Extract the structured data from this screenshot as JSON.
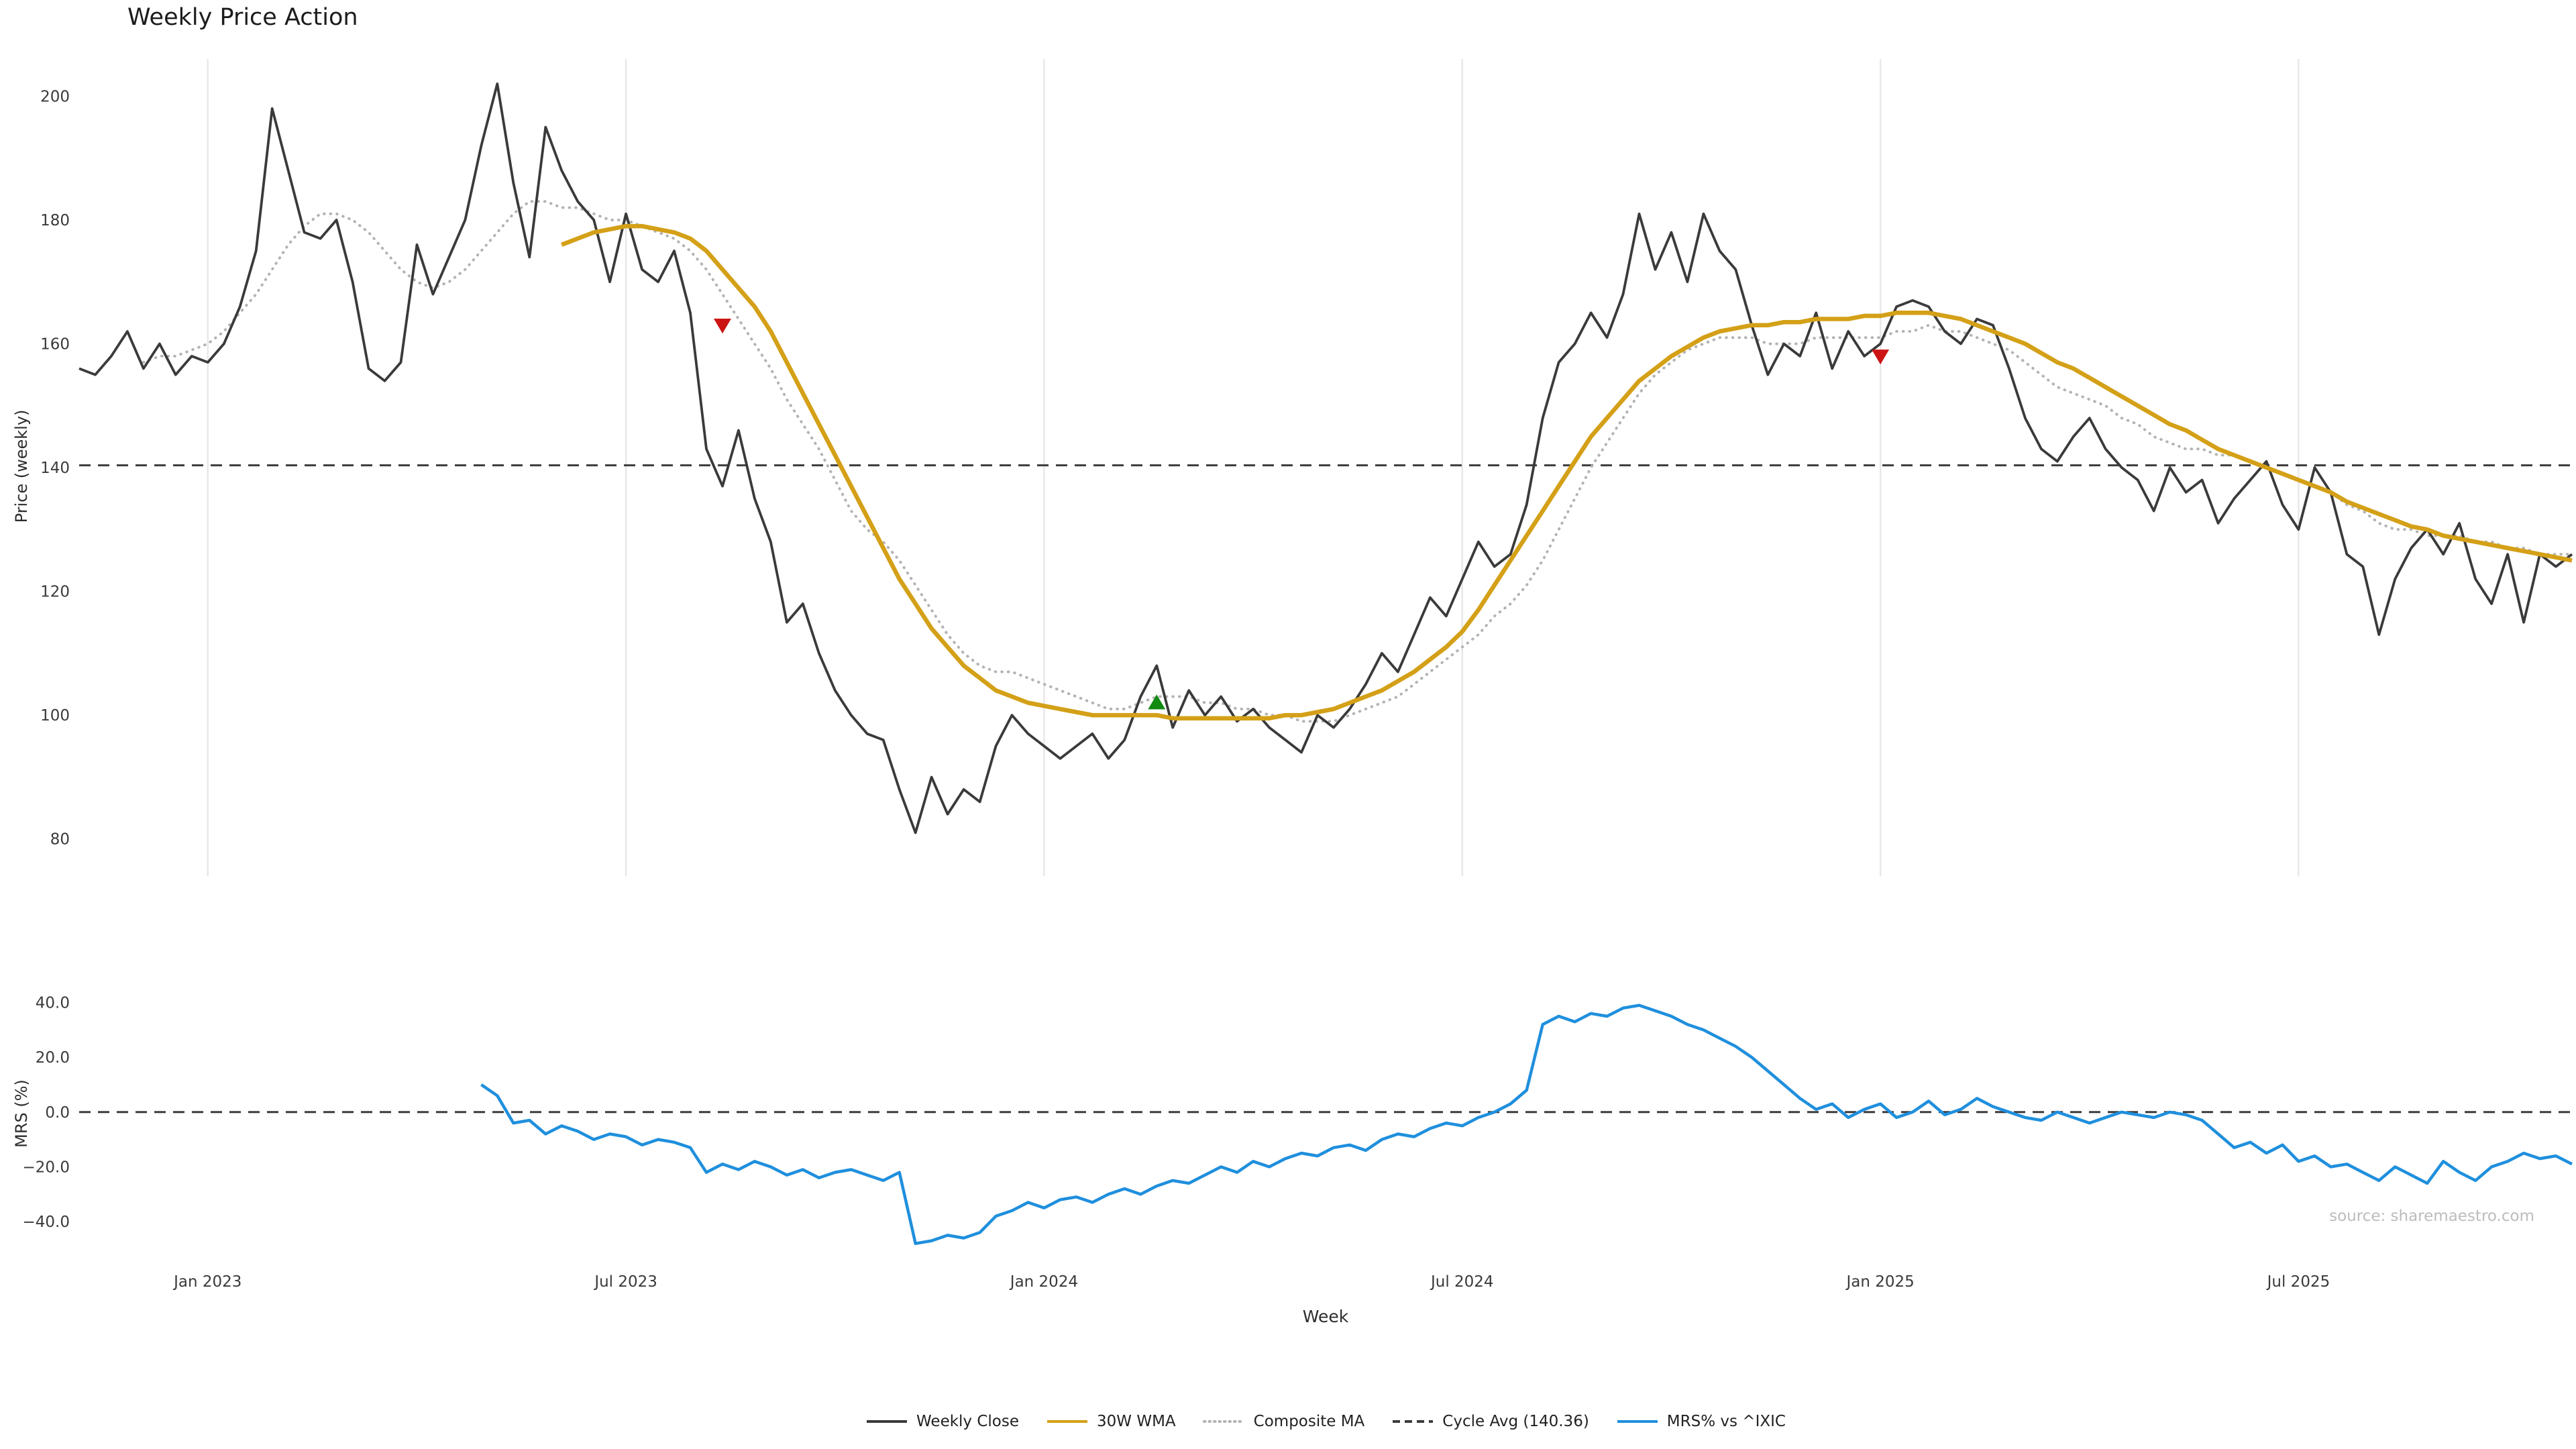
{
  "title": "Weekly Price Action",
  "source": "source: sharemaestro.com",
  "axes": {
    "x_label": "Week",
    "price_label": "Price (weekly)",
    "mrs_label": "MRS (%)"
  },
  "colors": {
    "grid": "#e8e8e8",
    "weekly_close": "#3a3a3a",
    "wma": "#d4a017",
    "composite": "#b3b3b3",
    "cycle_avg": "#3c3c3c",
    "mrs": "#1f8fdd",
    "buy": "#118a11",
    "sell": "#cc1414"
  },
  "legend": [
    {
      "label": "Weekly Close",
      "color": "#3a3a3a",
      "style": "solid"
    },
    {
      "label": "30W WMA",
      "color": "#d4a017",
      "style": "solid"
    },
    {
      "label": "Composite MA",
      "color": "#b3b3b3",
      "style": "dotted"
    },
    {
      "label": "Cycle Avg (140.36)",
      "color": "#3c3c3c",
      "style": "dashed"
    },
    {
      "label": "MRS% vs ^IXIC",
      "color": "#1f8fdd",
      "style": "solid"
    }
  ],
  "chart_data": [
    {
      "id": "price",
      "type": "line",
      "title": "Weekly Price Action",
      "ylabel": "Price (weekly)",
      "ylim": [
        74,
        206
      ],
      "weeks_total": 156,
      "grid_vertical": true,
      "show_x_labels": false,
      "yticks": [
        {
          "value": 80,
          "label": "80"
        },
        {
          "value": 100,
          "label": "100"
        },
        {
          "value": 120,
          "label": "120"
        },
        {
          "value": 140,
          "label": "140"
        },
        {
          "value": 160,
          "label": "160"
        },
        {
          "value": 180,
          "label": "180"
        },
        {
          "value": 200,
          "label": "200"
        }
      ],
      "xticks": [
        {
          "week": 8,
          "label": "Jan 2023"
        },
        {
          "week": 34,
          "label": "Jul 2023"
        },
        {
          "week": 60,
          "label": "Jan 2024"
        },
        {
          "week": 86,
          "label": "Jul 2024"
        },
        {
          "week": 112,
          "label": "Jan 2025"
        },
        {
          "week": 138,
          "label": "Jul 2025"
        }
      ],
      "hline": {
        "name": "cycle-avg-line",
        "label": "Cycle Avg (140.36)",
        "value": 140.36,
        "color": "#3c3c3c",
        "style": "dashed"
      },
      "series": [
        {
          "name": "Composite MA",
          "color": "#b3b3b3",
          "style": "dotted",
          "width": 4,
          "start_week": 4,
          "values": [
            157,
            158,
            158,
            159,
            160,
            162,
            165,
            168,
            172,
            176,
            179,
            181,
            181,
            180,
            178,
            175,
            172,
            170,
            169,
            170,
            172,
            175,
            178,
            181,
            183,
            183,
            182,
            182,
            181,
            180,
            180,
            179,
            178,
            177,
            175,
            172,
            168,
            164,
            160,
            156,
            151,
            147,
            143,
            138,
            133,
            130,
            128,
            125,
            121,
            117,
            113,
            110,
            108,
            107,
            107,
            106,
            105,
            104,
            103,
            102,
            101,
            101,
            102,
            103,
            103,
            103,
            102,
            102,
            101,
            101,
            100,
            100,
            99,
            99,
            99,
            100,
            101,
            102,
            103,
            105,
            107,
            109,
            111,
            113,
            116,
            118,
            121,
            125,
            130,
            135,
            140,
            144,
            148,
            152,
            155,
            157,
            159,
            160,
            161,
            161,
            161,
            160,
            160,
            160,
            161,
            161,
            161,
            161,
            161,
            162,
            162,
            163,
            162,
            162,
            161,
            160,
            159,
            157,
            155,
            153,
            152,
            151,
            150,
            148,
            147,
            145,
            144,
            143,
            143,
            142,
            142,
            141,
            140,
            139,
            138,
            137,
            136,
            134,
            133,
            131,
            130,
            130,
            129,
            129,
            129,
            128,
            128,
            127,
            127,
            126,
            126,
            126
          ]
        },
        {
          "name": "Weekly Close",
          "color": "#3a3a3a",
          "style": "solid",
          "width": 3.8,
          "start_week": 0,
          "values": [
            156,
            155,
            158,
            162,
            156,
            160,
            155,
            158,
            157,
            160,
            166,
            175,
            198,
            188,
            178,
            177,
            180,
            170,
            156,
            154,
            157,
            176,
            168,
            174,
            180,
            192,
            202,
            186,
            174,
            195,
            188,
            183,
            180,
            170,
            181,
            172,
            170,
            175,
            165,
            143,
            137,
            146,
            135,
            128,
            115,
            118,
            110,
            104,
            100,
            97,
            96,
            88,
            81,
            90,
            84,
            88,
            86,
            95,
            100,
            97,
            95,
            93,
            95,
            97,
            93,
            96,
            103,
            108,
            98,
            104,
            100,
            103,
            99,
            101,
            98,
            96,
            94,
            100,
            98,
            101,
            105,
            110,
            107,
            113,
            119,
            116,
            122,
            128,
            124,
            126,
            134,
            148,
            157,
            160,
            165,
            161,
            168,
            181,
            172,
            178,
            170,
            181,
            175,
            172,
            163,
            155,
            160,
            158,
            165,
            156,
            162,
            158,
            160,
            166,
            167,
            166,
            162,
            160,
            164,
            163,
            156,
            148,
            143,
            141,
            145,
            148,
            143,
            140,
            138,
            133,
            140,
            136,
            138,
            131,
            135,
            138,
            141,
            134,
            130,
            140,
            136,
            126,
            124,
            113,
            122,
            127,
            130,
            126,
            131,
            122,
            118,
            126,
            115,
            126,
            124,
            126
          ]
        },
        {
          "name": "30W WMA",
          "color": "#d4a017",
          "style": "solid",
          "width": 6.5,
          "start_week": 30,
          "values": [
            176,
            177,
            178,
            178.5,
            179,
            179,
            178.5,
            178,
            177,
            175,
            172,
            169,
            166,
            162,
            157,
            152,
            147,
            142,
            137,
            132,
            127,
            122,
            118,
            114,
            111,
            108,
            106,
            104,
            103,
            102,
            101.5,
            101,
            100.5,
            100,
            100,
            100,
            100,
            100,
            99.5,
            99.5,
            99.5,
            99.5,
            99.5,
            99.5,
            99.5,
            100,
            100,
            100.5,
            101,
            102,
            103,
            104,
            105.5,
            107,
            109,
            111,
            113.5,
            117,
            121,
            125,
            129,
            133,
            137,
            141,
            145,
            148,
            151,
            154,
            156,
            158,
            159.5,
            161,
            162,
            162.5,
            163,
            163,
            163.5,
            163.5,
            164,
            164,
            164,
            164.5,
            164.5,
            165,
            165,
            165,
            164.5,
            164,
            163,
            162,
            161,
            160,
            158.5,
            157,
            156,
            154.5,
            153,
            151.5,
            150,
            148.5,
            147,
            146,
            144.5,
            143,
            142,
            141,
            140,
            139,
            138,
            137,
            136,
            134.5,
            133.5,
            132.5,
            131.5,
            130.5,
            130,
            129,
            128.5,
            128,
            127.5,
            127,
            126.5,
            126,
            125.5,
            125
          ]
        }
      ],
      "markers": [
        {
          "kind": "sell-signal",
          "week": 40,
          "value": 163,
          "shape": "triangle-down",
          "color": "#cc1414"
        },
        {
          "kind": "buy-signal",
          "week": 67,
          "value": 102,
          "shape": "triangle-up",
          "color": "#118a11"
        },
        {
          "kind": "sell-signal",
          "week": 112,
          "value": 158,
          "shape": "triangle-down",
          "color": "#cc1414"
        }
      ]
    },
    {
      "id": "mrs",
      "type": "line",
      "ylabel": "MRS (%)",
      "xlabel": "Week",
      "ylim": [
        -52,
        46
      ],
      "weeks_total": 156,
      "grid_vertical": false,
      "show_x_labels": true,
      "yticks": [
        {
          "value": -40,
          "label": "−40.0"
        },
        {
          "value": -20,
          "label": "−20.0"
        },
        {
          "value": 0,
          "label": "0.0"
        },
        {
          "value": 20,
          "label": "20.0"
        },
        {
          "value": 40,
          "label": "40.0"
        }
      ],
      "xticks": [
        {
          "week": 8,
          "label": "Jan 2023"
        },
        {
          "week": 34,
          "label": "Jul 2023"
        },
        {
          "week": 60,
          "label": "Jan 2024"
        },
        {
          "week": 86,
          "label": "Jul 2024"
        },
        {
          "week": 112,
          "label": "Jan 2025"
        },
        {
          "week": 138,
          "label": "Jul 2025"
        }
      ],
      "hline": {
        "name": "zero-line",
        "value": 0,
        "color": "#3c3c3c",
        "style": "dashed"
      },
      "series": [
        {
          "name": "MRS% vs ^IXIC",
          "color": "#1f8fdd",
          "style": "solid",
          "width": 4.5,
          "start_week": 25,
          "values": [
            10,
            6,
            -4,
            -3,
            -8,
            -5,
            -7,
            -10,
            -8,
            -9,
            -12,
            -10,
            -11,
            -13,
            -22,
            -19,
            -21,
            -18,
            -20,
            -23,
            -21,
            -24,
            -22,
            -21,
            -23,
            -25,
            -22,
            -48,
            -47,
            -45,
            -46,
            -44,
            -38,
            -36,
            -33,
            -35,
            -32,
            -31,
            -33,
            -30,
            -28,
            -30,
            -27,
            -25,
            -26,
            -23,
            -20,
            -22,
            -18,
            -20,
            -17,
            -15,
            -16,
            -13,
            -12,
            -14,
            -10,
            -8,
            -9,
            -6,
            -4,
            -5,
            -2,
            0,
            3,
            8,
            32,
            35,
            33,
            36,
            35,
            38,
            39,
            37,
            35,
            32,
            30,
            27,
            24,
            20,
            15,
            10,
            5,
            1,
            3,
            -2,
            1,
            3,
            -2,
            0,
            4,
            -1,
            1,
            5,
            2,
            0,
            -2,
            -3,
            0,
            -2,
            -4,
            -2,
            0,
            -1,
            -2,
            0,
            -1,
            -3,
            -8,
            -13,
            -11,
            -15,
            -12,
            -18,
            -16,
            -20,
            -19,
            -22,
            -25,
            -20,
            -23,
            -26,
            -18,
            -22,
            -25,
            -20,
            -18,
            -15,
            -17,
            -16,
            -19
          ]
        }
      ],
      "markers": []
    }
  ]
}
